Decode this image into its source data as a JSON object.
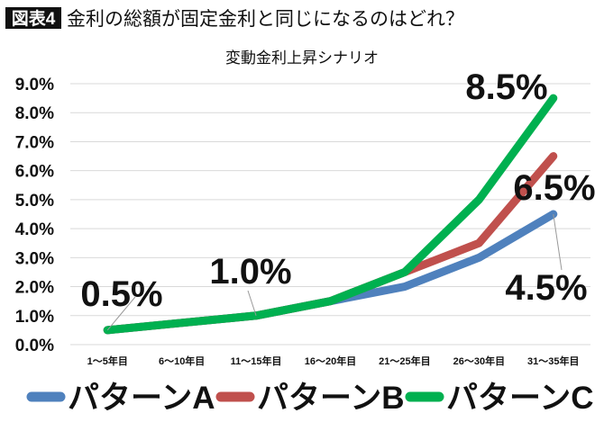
{
  "header": {
    "badge": "図表4",
    "title": "金利の総額が固定金利と同じになるのはどれ？"
  },
  "chart_data": {
    "type": "line",
    "title": "変動金利上昇シナリオ",
    "categories": [
      "1～5年目",
      "6～10年目",
      "11～15年目",
      "16～20年目",
      "21～25年目",
      "26～30年目",
      "31～35年目"
    ],
    "ylim": [
      0,
      9
    ],
    "y_ticks": [
      "0.0%",
      "1.0%",
      "2.0%",
      "3.0%",
      "4.0%",
      "5.0%",
      "6.0%",
      "7.0%",
      "8.0%",
      "9.0%"
    ],
    "grid": true,
    "legend_position": "bottom",
    "series": [
      {
        "name": "パターンA",
        "color": "#4f81bd",
        "values": [
          0.5,
          0.75,
          1.0,
          1.5,
          2.0,
          3.0,
          4.5
        ]
      },
      {
        "name": "パターンB",
        "color": "#c0504d",
        "values": [
          0.5,
          0.75,
          1.0,
          1.5,
          2.5,
          3.5,
          6.5
        ]
      },
      {
        "name": "パターンC",
        "color": "#00b050",
        "values": [
          0.5,
          0.75,
          1.0,
          1.5,
          2.5,
          5.0,
          8.5
        ]
      }
    ],
    "annotations": [
      "0.5%",
      "1.0%",
      "8.5%",
      "6.5%",
      "4.5%"
    ]
  }
}
